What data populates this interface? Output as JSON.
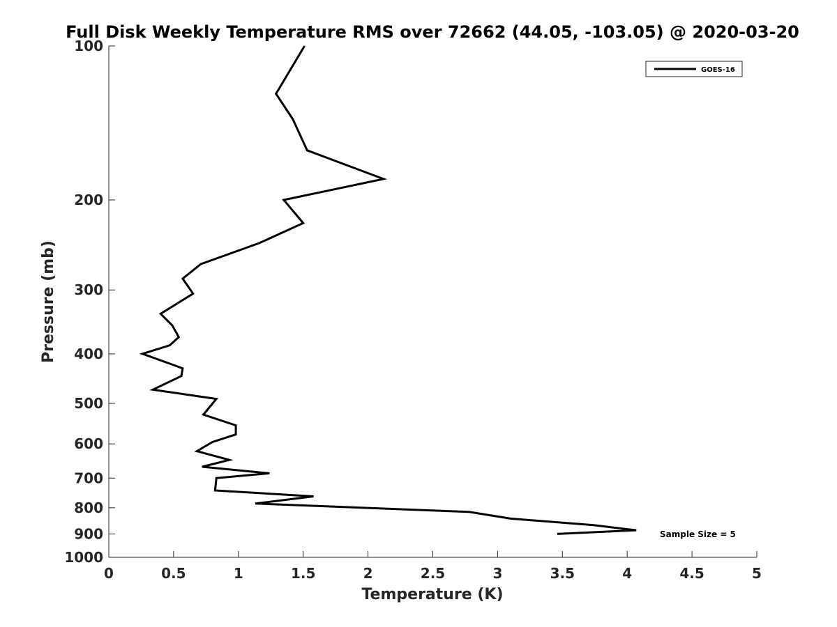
{
  "chart_data": {
    "type": "line",
    "title": "Full Disk Weekly Temperature RMS over 72662 (44.05, -103.05) @ 2020-03-20",
    "xlabel": "Temperature (K)",
    "ylabel": "Pressure (mb)",
    "xlim": [
      0,
      5
    ],
    "ylim": [
      100,
      1000
    ],
    "y_scale": "log",
    "y_reversed": true,
    "grid": false,
    "legend_position": "top-right",
    "x_ticks": [
      "0",
      "0.5",
      "1",
      "1.5",
      "2",
      "2.5",
      "3",
      "3.5",
      "4",
      "4.5",
      "5"
    ],
    "y_ticks": [
      "100",
      "200",
      "300",
      "400",
      "500",
      "600",
      "700",
      "800",
      "900",
      "1000"
    ],
    "series": [
      {
        "name": "GOES-16",
        "color": "#000000",
        "x": [
          1.51,
          1.29,
          1.42,
          1.53,
          2.12,
          1.35,
          1.5,
          1.16,
          0.71,
          0.57,
          0.65,
          0.4,
          0.49,
          0.54,
          0.47,
          0.26,
          0.57,
          0.56,
          0.34,
          0.83,
          0.73,
          0.98,
          0.98,
          0.8,
          0.68,
          0.93,
          0.72,
          1.24,
          0.83,
          0.82,
          1.58,
          1.13,
          2.78,
          3.1,
          3.74,
          4.07,
          3.46
        ],
        "y": [
          100,
          124,
          139,
          160,
          182,
          200,
          222,
          243,
          267,
          285,
          305,
          334,
          352,
          371,
          385,
          400,
          427,
          442,
          470,
          490,
          526,
          552,
          575,
          595,
          620,
          645,
          665,
          685,
          700,
          740,
          760,
          785,
          815,
          840,
          865,
          885,
          900
        ]
      }
    ],
    "annotation": "Sample Size = 5"
  }
}
